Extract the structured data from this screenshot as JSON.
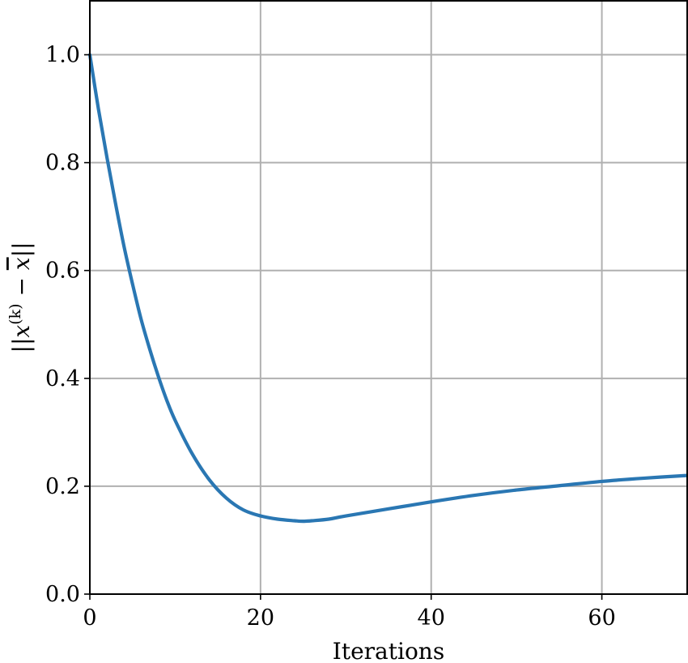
{
  "chart_data": {
    "type": "line",
    "title": "",
    "xlabel": "Iterations",
    "ylabel": "||x(k) − x̄||",
    "ylabel_parts": {
      "open": "||",
      "var": "x",
      "sup": "(k)",
      "minus": " − ",
      "bar_var": "x",
      "close": "||"
    },
    "xlim": [
      0,
      70
    ],
    "ylim": [
      0,
      1.1
    ],
    "xticks": [
      0,
      20,
      40,
      60
    ],
    "xtick_labels": [
      "0",
      "20",
      "40",
      "60"
    ],
    "yticks": [
      0.0,
      0.2,
      0.4,
      0.6,
      0.8,
      1.0
    ],
    "ytick_labels": [
      "0.0",
      "0.2",
      "0.4",
      "0.6",
      "0.8",
      "1.0"
    ],
    "grid": true,
    "series": [
      {
        "color": "#2a77b3",
        "x": [
          0,
          1,
          2,
          3,
          4,
          5,
          6,
          7,
          8,
          9,
          10,
          12,
          14,
          16,
          18,
          20,
          22,
          24,
          25,
          26,
          28,
          30,
          35,
          40,
          45,
          50,
          55,
          60,
          65,
          70
        ],
        "y": [
          1.0,
          0.9,
          0.81,
          0.725,
          0.645,
          0.575,
          0.51,
          0.455,
          0.405,
          0.36,
          0.322,
          0.26,
          0.212,
          0.178,
          0.156,
          0.145,
          0.139,
          0.136,
          0.135,
          0.136,
          0.139,
          0.145,
          0.158,
          0.171,
          0.183,
          0.193,
          0.201,
          0.209,
          0.215,
          0.22
        ]
      }
    ]
  }
}
